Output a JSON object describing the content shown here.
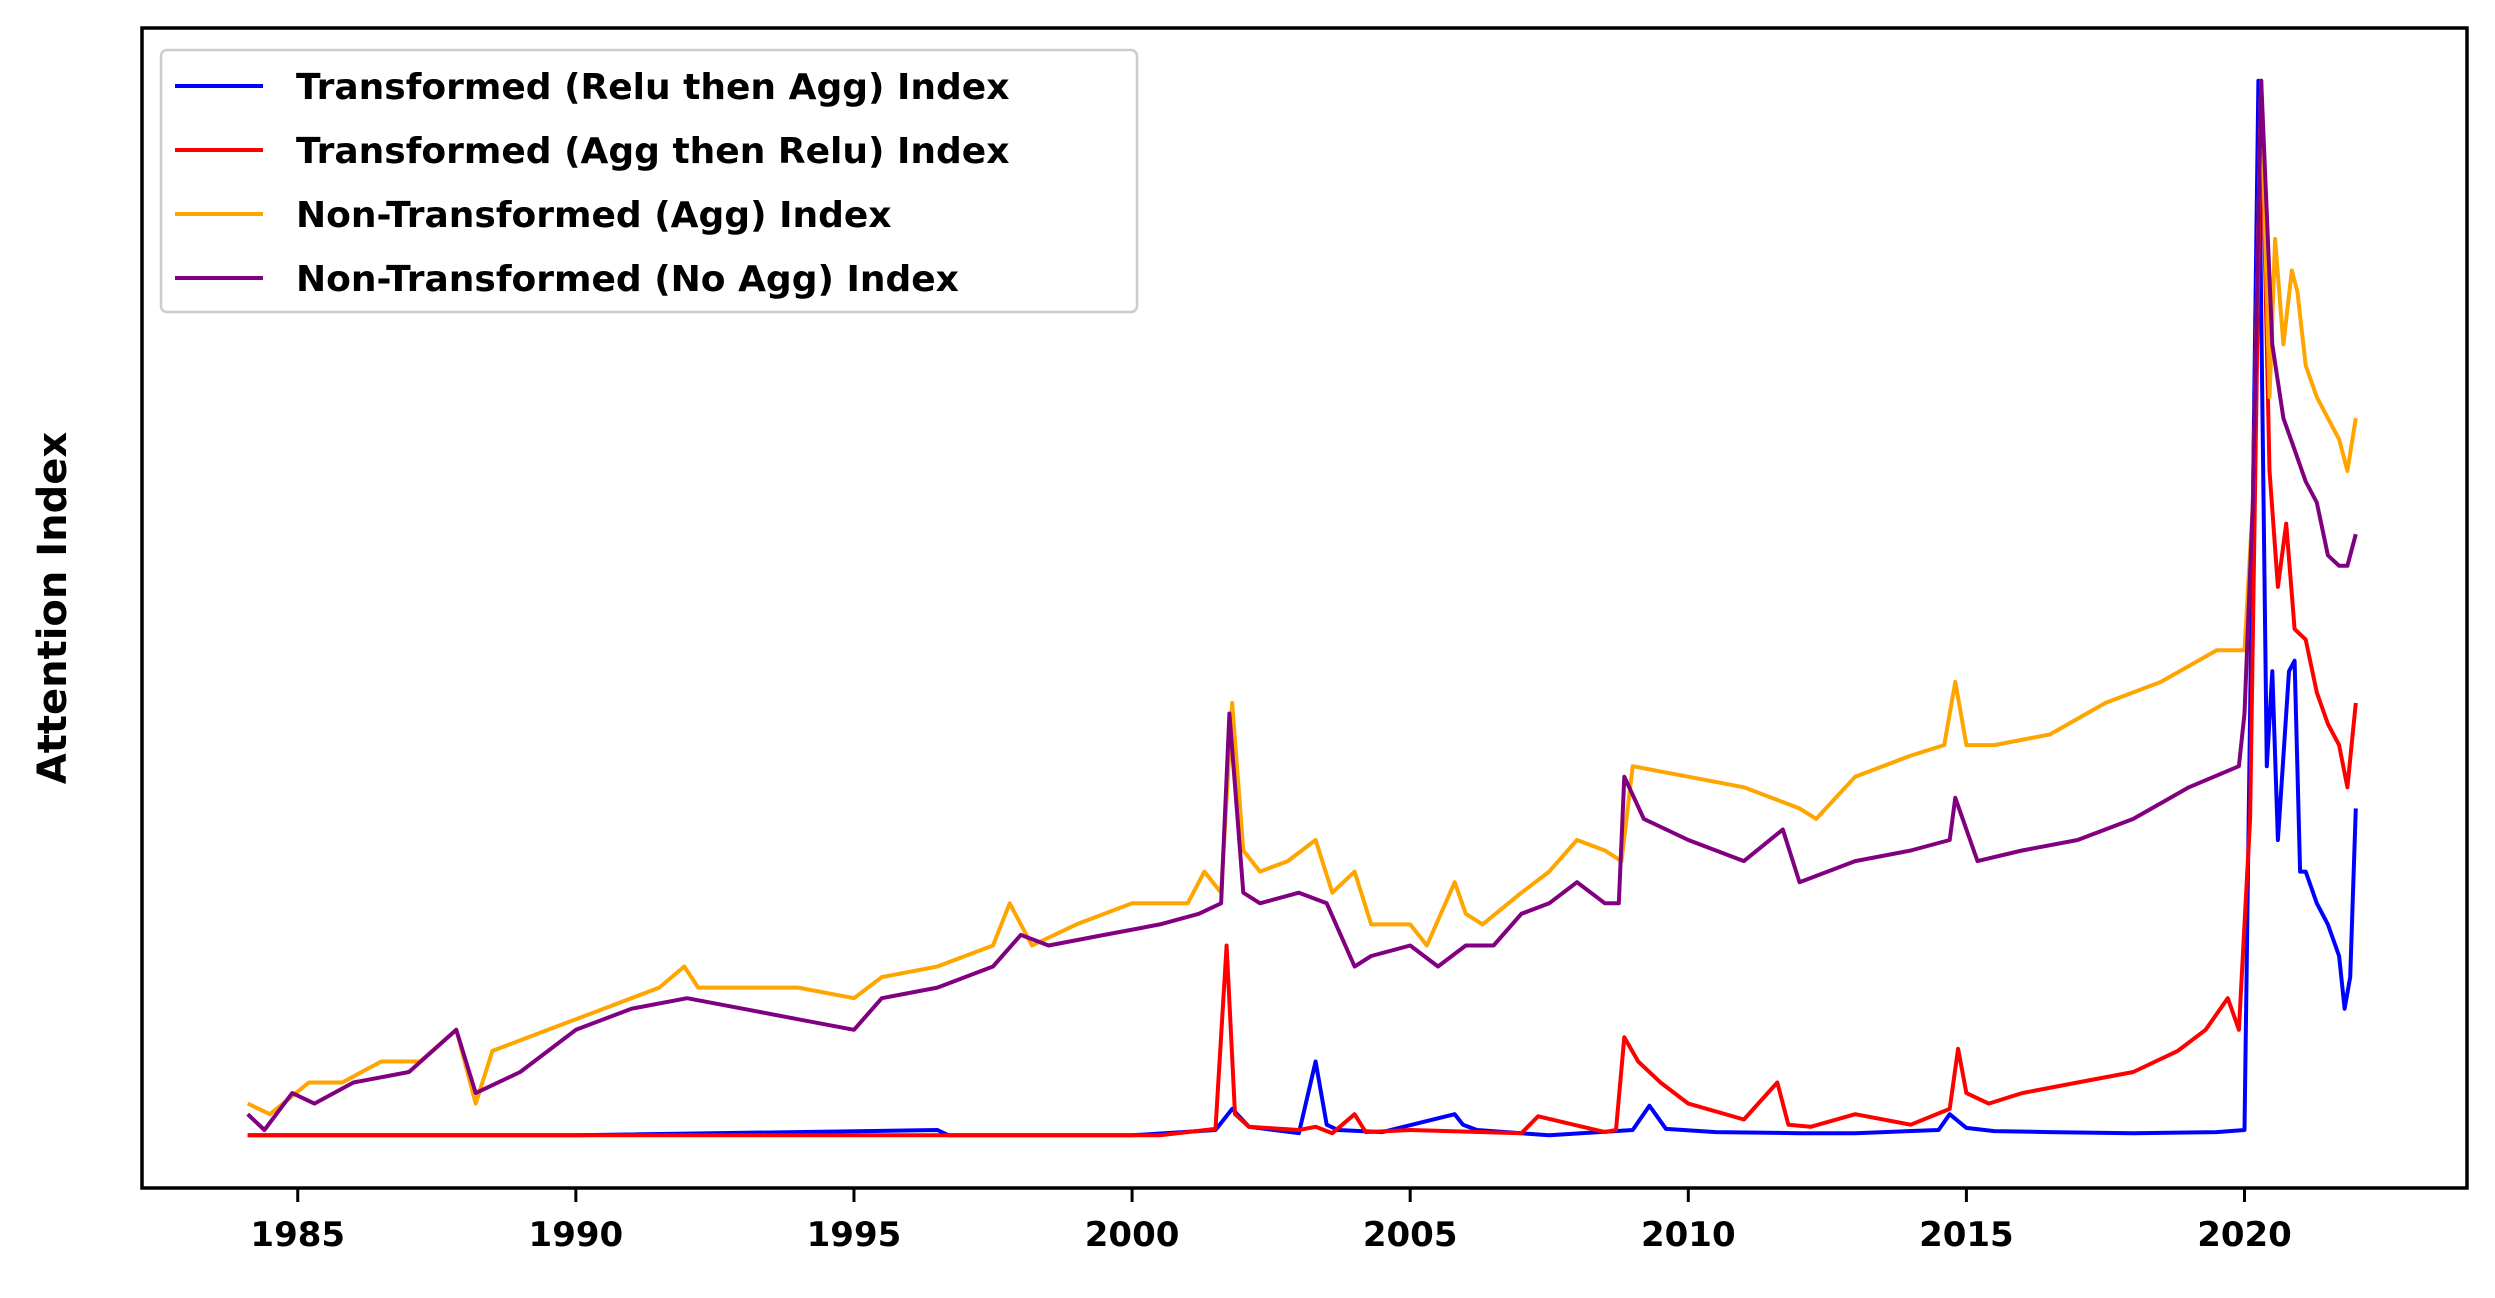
{
  "chart_data": {
    "type": "line",
    "title": "",
    "xlabel": "",
    "ylabel": "Attention Index",
    "xlim": [
      1982.2,
      2024.0
    ],
    "ylim": [
      -0.05,
      1.05
    ],
    "y_ticks_shown": false,
    "grid": false,
    "legend_position": "top-left",
    "x_ticks": [
      1985,
      1990,
      1995,
      2000,
      2005,
      2010,
      2015,
      2020
    ],
    "x_tick_labels": [
      "1985",
      "1990",
      "1995",
      "2000",
      "2005",
      "2010",
      "2015",
      "2020"
    ],
    "series": [
      {
        "name": "Transformed (Relu then Agg) Index",
        "color": "#0000ff",
        "x": [
          1984.1,
          1990,
          1996.5,
          1996.7,
          2000,
          2001.5,
          2001.8,
          2002.1,
          2003.0,
          2003.3,
          2003.5,
          2003.7,
          2004.5,
          2005.8,
          2005.95,
          2006.2,
          2007.5,
          2009.0,
          2009.3,
          2009.6,
          2010.5,
          2012,
          2013,
          2014.5,
          2014.7,
          2015.0,
          2015.5,
          2016.5,
          2018,
          2019.5,
          2020.0,
          2020.1,
          2020.25,
          2020.4,
          2020.5,
          2020.6,
          2020.8,
          2020.9,
          2021.0,
          2021.1,
          2021.3,
          2021.5,
          2021.7,
          2021.8,
          2021.9,
          2022.0
        ],
        "values": [
          0.0,
          0.0,
          0.005,
          0.0,
          0.0,
          0.005,
          0.025,
          0.008,
          0.002,
          0.07,
          0.01,
          0.005,
          0.003,
          0.02,
          0.01,
          0.005,
          0.0,
          0.005,
          0.028,
          0.006,
          0.003,
          0.002,
          0.002,
          0.005,
          0.02,
          0.007,
          0.004,
          0.003,
          0.002,
          0.003,
          0.005,
          0.4,
          1.0,
          0.35,
          0.44,
          0.28,
          0.44,
          0.45,
          0.25,
          0.25,
          0.22,
          0.2,
          0.17,
          0.12,
          0.15,
          0.31
        ]
      },
      {
        "name": "Transformed (Agg then Relu) Index",
        "color": "#ff0000",
        "x": [
          1984.1,
          1990,
          1996,
          2000.5,
          2001.5,
          2001.7,
          2001.85,
          2002.1,
          2003,
          2003.3,
          2003.6,
          2004.0,
          2004.2,
          2005,
          2007,
          2007.3,
          2008.5,
          2008.7,
          2008.85,
          2009.1,
          2009.5,
          2010,
          2011,
          2011.6,
          2011.8,
          2012.2,
          2013,
          2014,
          2014.7,
          2014.85,
          2015.0,
          2015.4,
          2016,
          2017,
          2018,
          2018.8,
          2019.3,
          2019.7,
          2019.9,
          2020.1,
          2020.3,
          2020.45,
          2020.6,
          2020.75,
          2020.9,
          2021.1,
          2021.3,
          2021.5,
          2021.7,
          2021.85,
          2022.0
        ],
        "values": [
          0.0,
          0.0,
          0.0,
          0.0,
          0.006,
          0.18,
          0.02,
          0.008,
          0.005,
          0.008,
          0.002,
          0.02,
          0.003,
          0.005,
          0.002,
          0.018,
          0.003,
          0.005,
          0.093,
          0.07,
          0.05,
          0.03,
          0.015,
          0.05,
          0.01,
          0.008,
          0.02,
          0.01,
          0.025,
          0.082,
          0.04,
          0.03,
          0.04,
          0.05,
          0.06,
          0.08,
          0.1,
          0.13,
          0.1,
          0.3,
          1.0,
          0.63,
          0.52,
          0.58,
          0.48,
          0.47,
          0.42,
          0.39,
          0.37,
          0.33,
          0.41
        ]
      },
      {
        "name": "Non-Transformed (Agg) Index",
        "color": "#ffa500",
        "x": [
          1984.1,
          1984.5,
          1985.2,
          1985.8,
          1986.5,
          1987.2,
          1987.85,
          1988.2,
          1988.5,
          1989.5,
          1990.5,
          1991.5,
          1991.95,
          1992.2,
          1993,
          1994,
          1995,
          1995.5,
          1996.5,
          1997.5,
          1997.8,
          1998.2,
          1999,
          2000,
          2001,
          2001.3,
          2001.6,
          2001.8,
          2002.0,
          2002.3,
          2002.8,
          2003.3,
          2003.6,
          2004.0,
          2004.3,
          2005.0,
          2005.3,
          2005.8,
          2006.0,
          2006.3,
          2007,
          2007.5,
          2008,
          2008.5,
          2008.8,
          2009,
          2010,
          2011,
          2012,
          2012.3,
          2013,
          2014,
          2014.6,
          2014.8,
          2015.0,
          2015.5,
          2016.5,
          2017.5,
          2018.5,
          2019.5,
          2020.0,
          2020.15,
          2020.3,
          2020.45,
          2020.55,
          2020.7,
          2020.85,
          2020.95,
          2021.1,
          2021.3,
          2021.5,
          2021.7,
          2021.85,
          2022.0
        ],
        "values": [
          0.03,
          0.02,
          0.05,
          0.05,
          0.07,
          0.07,
          0.1,
          0.03,
          0.08,
          0.1,
          0.12,
          0.14,
          0.16,
          0.14,
          0.14,
          0.14,
          0.13,
          0.15,
          0.16,
          0.18,
          0.22,
          0.18,
          0.2,
          0.22,
          0.22,
          0.25,
          0.23,
          0.41,
          0.27,
          0.25,
          0.26,
          0.28,
          0.23,
          0.25,
          0.2,
          0.2,
          0.18,
          0.24,
          0.21,
          0.2,
          0.23,
          0.25,
          0.28,
          0.27,
          0.26,
          0.35,
          0.34,
          0.33,
          0.31,
          0.3,
          0.34,
          0.36,
          0.37,
          0.43,
          0.37,
          0.37,
          0.38,
          0.41,
          0.43,
          0.46,
          0.46,
          0.6,
          1.0,
          0.7,
          0.85,
          0.75,
          0.82,
          0.8,
          0.73,
          0.7,
          0.68,
          0.66,
          0.63,
          0.68
        ]
      },
      {
        "name": "Non-Transformed (No Agg) Index",
        "color": "#800080",
        "x": [
          1984.1,
          1984.4,
          1984.9,
          1985.3,
          1986,
          1987,
          1987.85,
          1988.2,
          1989,
          1990,
          1991,
          1992,
          1993,
          1994,
          1995,
          1995.5,
          1996.5,
          1997.5,
          1998,
          1998.5,
          1999.5,
          2000.5,
          2001.2,
          2001.6,
          2001.75,
          2002.0,
          2002.3,
          2003,
          2003.5,
          2004.0,
          2004.3,
          2005,
          2005.5,
          2006,
          2006.5,
          2007,
          2007.5,
          2008,
          2008.5,
          2008.75,
          2008.85,
          2009.2,
          2010,
          2011,
          2011.7,
          2012,
          2013,
          2014,
          2014.7,
          2014.8,
          2015.2,
          2016,
          2017,
          2018,
          2019,
          2019.9,
          2020.0,
          2020.15,
          2020.3,
          2020.5,
          2020.7,
          2020.9,
          2021.1,
          2021.3,
          2021.5,
          2021.7,
          2021.85,
          2022.0
        ],
        "values": [
          0.02,
          0.005,
          0.04,
          0.03,
          0.05,
          0.06,
          0.1,
          0.04,
          0.06,
          0.1,
          0.12,
          0.13,
          0.12,
          0.11,
          0.1,
          0.13,
          0.14,
          0.16,
          0.19,
          0.18,
          0.19,
          0.2,
          0.21,
          0.22,
          0.4,
          0.23,
          0.22,
          0.23,
          0.22,
          0.16,
          0.17,
          0.18,
          0.16,
          0.18,
          0.18,
          0.21,
          0.22,
          0.24,
          0.22,
          0.22,
          0.34,
          0.3,
          0.28,
          0.26,
          0.29,
          0.24,
          0.26,
          0.27,
          0.28,
          0.32,
          0.26,
          0.27,
          0.28,
          0.3,
          0.33,
          0.35,
          0.4,
          0.6,
          1.0,
          0.75,
          0.68,
          0.65,
          0.62,
          0.6,
          0.55,
          0.54,
          0.54,
          0.57
        ]
      }
    ]
  }
}
